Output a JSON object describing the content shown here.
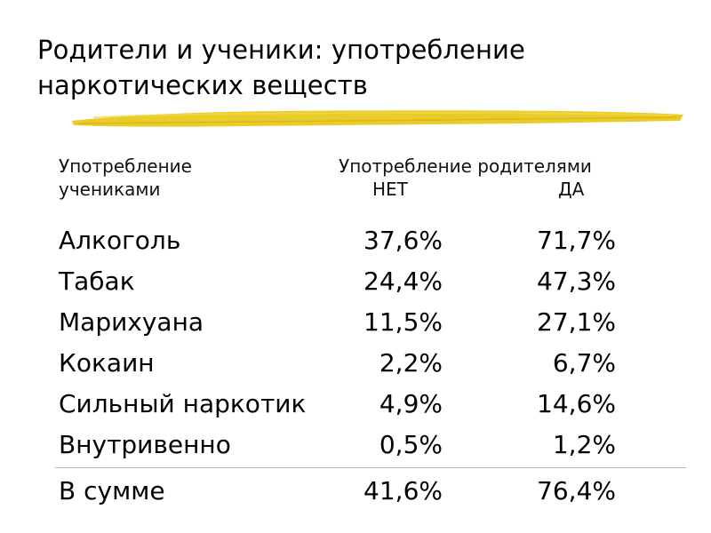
{
  "slide": {
    "title_line1": "Родители и ученики: употребление",
    "title_line2": "наркотических веществ",
    "accent_color": "#e8c81e"
  },
  "table": {
    "header_left_line1": "Употребление",
    "header_left_line2": "учениками",
    "header_right": "Употребление родителями",
    "col_no": "НЕТ",
    "col_yes": "ДА",
    "rows": [
      {
        "label": "Алкоголь",
        "no": "37,6%",
        "yes": "71,7%"
      },
      {
        "label": "Табак",
        "no": "24,4%",
        "yes": "47,3%"
      },
      {
        "label": "Марихуана",
        "no": "11,5%",
        "yes": "27,1%"
      },
      {
        "label": "Кокаин",
        "no": "2,2%",
        "yes": "6,7%"
      },
      {
        "label": "Сильный наркотик",
        "no": "4,9%",
        "yes": "14,6%"
      },
      {
        "label": "Внутривенно",
        "no": "0,5%",
        "yes": "1,2%"
      }
    ],
    "total": {
      "label": "В сумме",
      "no": "41,6%",
      "yes": "76,4%"
    }
  }
}
